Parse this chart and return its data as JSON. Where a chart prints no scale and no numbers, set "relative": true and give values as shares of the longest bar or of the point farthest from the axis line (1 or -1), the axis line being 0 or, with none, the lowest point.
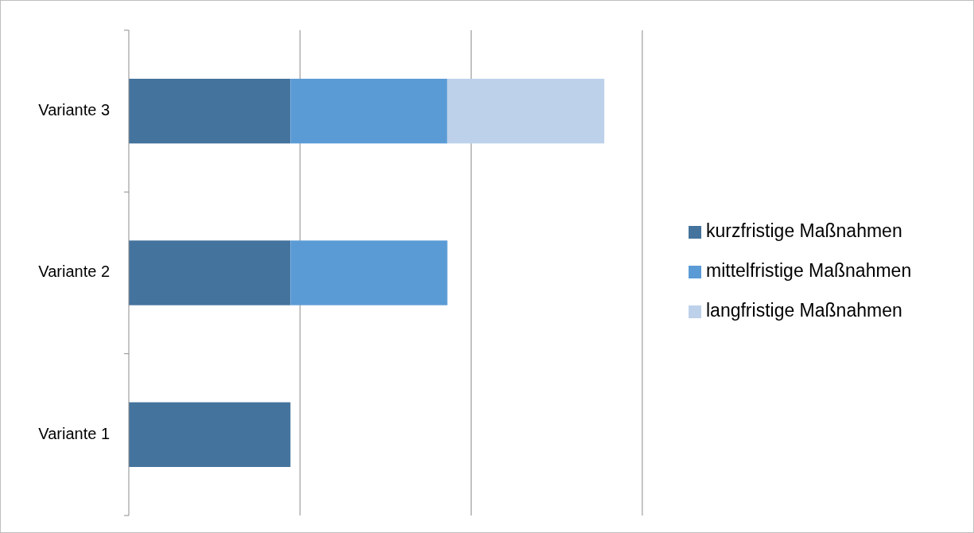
{
  "chart_data": {
    "type": "bar",
    "orientation": "horizontal",
    "stacked": true,
    "relative": true,
    "categories": [
      "Variante 3",
      "Variante 2",
      "Variante 1"
    ],
    "series": [
      {
        "name": "kurzfristige Maßnahmen",
        "color": "#44739d",
        "values": [
          0.34,
          0.34,
          0.34
        ]
      },
      {
        "name": "mittelfristige Maßnahmen",
        "color": "#5b9bd5",
        "values": [
          0.33,
          0.33,
          null
        ]
      },
      {
        "name": "langfristige Maßnahmen",
        "color": "#bdd1ea",
        "values": [
          0.33,
          null,
          null
        ]
      }
    ],
    "ref_lines": [
      {
        "axis": "x",
        "value": 0.36,
        "color": "#8c8c8c"
      },
      {
        "axis": "x",
        "value": 0.72,
        "color": "#8c8c8c"
      },
      {
        "axis": "x",
        "value": 1.08,
        "color": "#8c8c8c"
      }
    ],
    "legend": "right"
  }
}
